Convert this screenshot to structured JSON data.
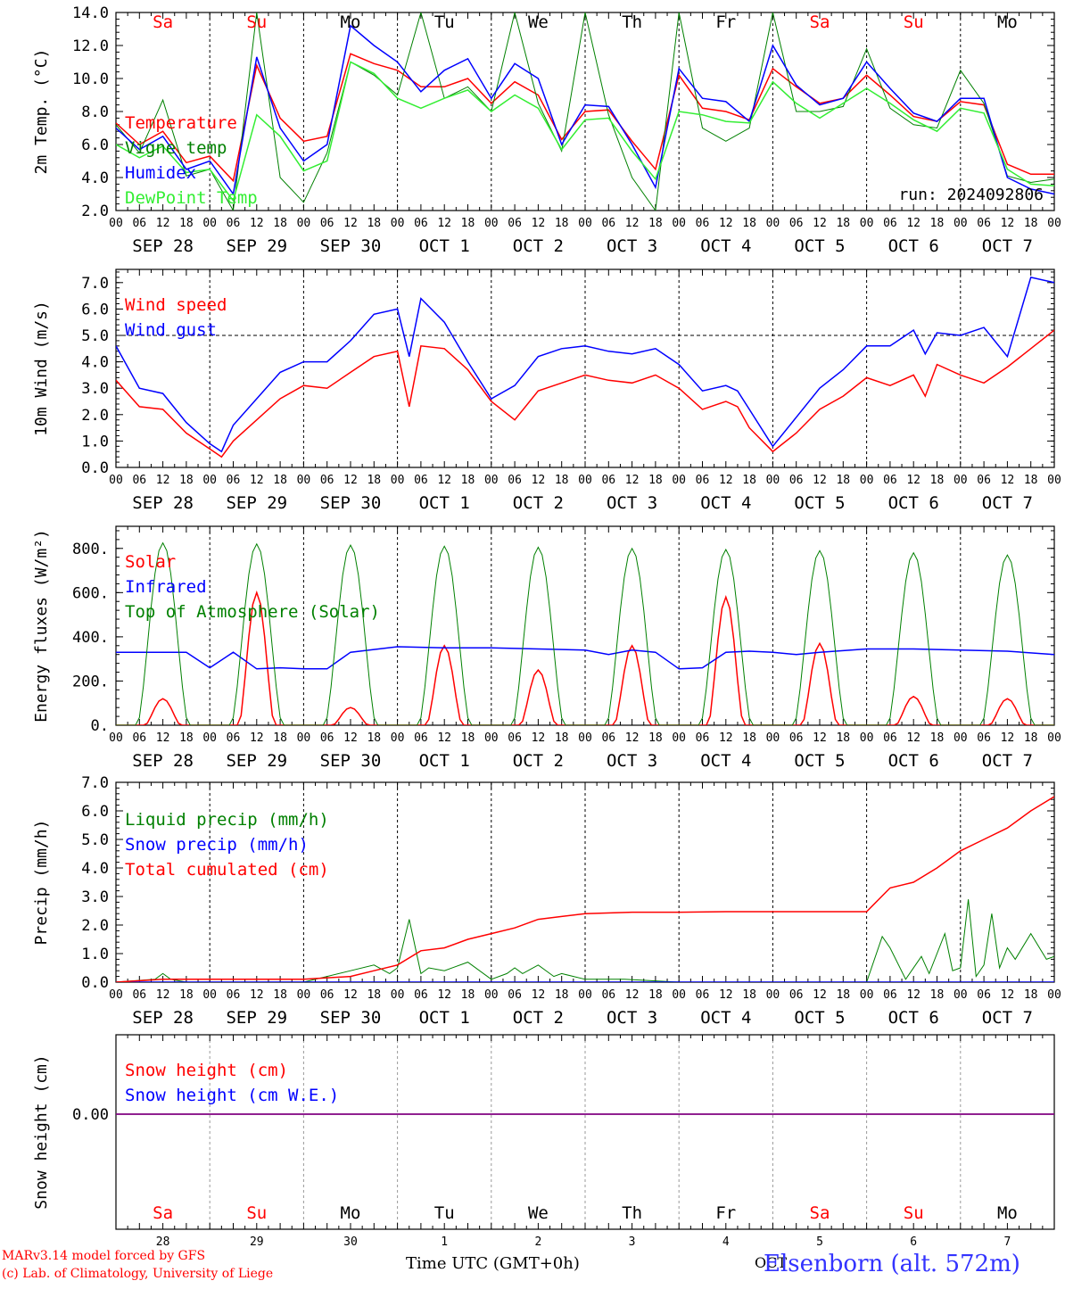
{
  "colors": {
    "red": "#ff0000",
    "blue": "#0000ff",
    "green": "#008000",
    "lightgreen": "#33ee33",
    "axis": "#000000",
    "grid": "#000000",
    "snowline": "#800080"
  },
  "day_top_labels": [
    {
      "text": "Sa",
      "color": "#ff0000"
    },
    {
      "text": "Su",
      "color": "#ff0000"
    },
    {
      "text": "Mo",
      "color": "#000000"
    },
    {
      "text": "Tu",
      "color": "#000000"
    },
    {
      "text": "We",
      "color": "#000000"
    },
    {
      "text": "Th",
      "color": "#000000"
    },
    {
      "text": "Fr",
      "color": "#000000"
    },
    {
      "text": "Sa",
      "color": "#ff0000"
    },
    {
      "text": "Su",
      "color": "#ff0000"
    },
    {
      "text": "Mo",
      "color": "#000000"
    }
  ],
  "date_labels": [
    "SEP 28",
    "SEP 29",
    "SEP 30",
    "OCT 1",
    "OCT 2",
    "OCT 3",
    "OCT 4",
    "OCT 5",
    "OCT 6",
    "OCT 7"
  ],
  "hour_ticks": [
    "00",
    "06",
    "12",
    "18"
  ],
  "hour_tick_end": "00",
  "day_numbers": [
    "28",
    "29",
    "30",
    "1",
    "2",
    "3",
    "4",
    "5",
    "6",
    "7"
  ],
  "footer": {
    "model": "MARv3.14 model forced by GFS",
    "lab": "(c) Lab. of Climatology, University of Liege",
    "time_axis": "Time UTC (GMT+0h)",
    "station": "Elsenborn (alt. 572m)",
    "station_overlap": "OCT"
  },
  "chart_data": [
    {
      "type": "line",
      "ylabel": "2m Temp. (°C)",
      "ylim": [
        2,
        14
      ],
      "yticks": [
        "2.0",
        "4.0",
        "6.0",
        "8.0",
        "10.0",
        "12.0",
        "14.0"
      ],
      "annotation": "run: 2024092806",
      "x_unit": "hours from 2024-09-28 00 UTC",
      "series": [
        {
          "name": "Temperature",
          "color": "#ff0000",
          "x": [
            0,
            6,
            12,
            18,
            24,
            30,
            36,
            42,
            48,
            54,
            60,
            66,
            72,
            78,
            84,
            90,
            96,
            102,
            108,
            114,
            120,
            126,
            132,
            138,
            144,
            150,
            156,
            162,
            168,
            174,
            180,
            186,
            192,
            198,
            204,
            210,
            216,
            222,
            228,
            234,
            240
          ],
          "y": [
            7.3,
            6.0,
            6.8,
            4.9,
            5.3,
            3.8,
            10.8,
            7.6,
            6.2,
            6.5,
            11.5,
            10.9,
            10.5,
            9.5,
            9.5,
            10.0,
            8.5,
            9.8,
            9.0,
            6.3,
            8.0,
            8.1,
            6.2,
            4.5,
            10.2,
            8.2,
            8.0,
            7.5,
            10.6,
            9.5,
            8.5,
            8.8,
            10.2,
            9.0,
            7.7,
            7.4,
            8.6,
            8.4,
            4.8,
            4.2,
            4.2
          ]
        },
        {
          "name": "Vigne temp",
          "color": "#008000",
          "x": [
            0,
            6,
            12,
            18,
            24,
            30,
            36,
            42,
            48,
            54,
            60,
            66,
            72,
            78,
            84,
            90,
            96,
            102,
            108,
            114,
            120,
            126,
            132,
            138,
            144,
            150,
            156,
            162,
            168,
            174,
            180,
            186,
            192,
            198,
            204,
            210,
            216,
            222,
            228,
            234,
            240
          ],
          "y": [
            7.2,
            5.5,
            8.7,
            4.1,
            4.5,
            2.0,
            14.0,
            4.0,
            2.5,
            5.5,
            11.0,
            10.2,
            9.0,
            14.0,
            8.8,
            9.5,
            8.0,
            14.0,
            8.5,
            5.6,
            14.0,
            7.8,
            4.0,
            2.0,
            14.0,
            7.0,
            6.2,
            7.0,
            14.0,
            8.0,
            8.0,
            8.3,
            11.8,
            8.2,
            7.2,
            7.0,
            10.5,
            8.5,
            4.1,
            3.7,
            3.9
          ]
        },
        {
          "name": "Humidex",
          "color": "#0000ff",
          "x": [
            0,
            6,
            12,
            18,
            24,
            30,
            36,
            42,
            48,
            54,
            60,
            66,
            72,
            78,
            84,
            90,
            96,
            102,
            108,
            114,
            120,
            126,
            132,
            138,
            144,
            150,
            156,
            162,
            168,
            174,
            180,
            186,
            192,
            198,
            204,
            210,
            216,
            222,
            228,
            234,
            240
          ],
          "y": [
            7.0,
            5.7,
            6.5,
            4.5,
            5.0,
            3.0,
            11.3,
            7.0,
            5.0,
            6.0,
            13.2,
            12.0,
            11.0,
            9.2,
            10.5,
            11.2,
            8.8,
            10.9,
            10.0,
            6.0,
            8.4,
            8.3,
            6.0,
            3.4,
            10.6,
            8.8,
            8.6,
            7.4,
            12.0,
            9.6,
            8.4,
            8.8,
            11.0,
            9.4,
            7.9,
            7.4,
            8.8,
            8.8,
            4.0,
            3.3,
            3.0
          ]
        },
        {
          "name": "DewPoint Temp",
          "color": "#33ee33",
          "x": [
            0,
            6,
            12,
            18,
            24,
            30,
            36,
            42,
            48,
            54,
            60,
            66,
            72,
            78,
            84,
            90,
            96,
            102,
            108,
            114,
            120,
            126,
            132,
            138,
            144,
            150,
            156,
            162,
            168,
            174,
            180,
            186,
            192,
            198,
            204,
            210,
            216,
            222,
            228,
            234,
            240
          ],
          "y": [
            6.0,
            5.2,
            5.9,
            4.3,
            4.5,
            2.6,
            7.8,
            6.5,
            4.4,
            5.0,
            11.0,
            10.3,
            8.8,
            8.2,
            8.8,
            9.3,
            8.0,
            9.0,
            8.2,
            5.7,
            7.5,
            7.6,
            5.6,
            3.9,
            8.0,
            7.8,
            7.4,
            7.3,
            9.8,
            8.5,
            7.6,
            8.5,
            9.4,
            8.5,
            7.5,
            6.8,
            8.2,
            7.9,
            4.5,
            3.6,
            3.5
          ]
        }
      ]
    },
    {
      "type": "line",
      "ylabel": "10m Wind (m/s)",
      "ylim": [
        0,
        7.5
      ],
      "yticks": [
        "0.0",
        "1.0",
        "2.0",
        "3.0",
        "4.0",
        "5.0",
        "6.0",
        "7.0"
      ],
      "reference_line": 5.0,
      "x_unit": "hours from 2024-09-28 00 UTC",
      "series": [
        {
          "name": "Wind speed",
          "color": "#ff0000",
          "x": [
            0,
            6,
            12,
            18,
            24,
            27,
            30,
            36,
            42,
            48,
            54,
            60,
            66,
            72,
            75,
            78,
            84,
            90,
            96,
            102,
            108,
            114,
            120,
            126,
            132,
            138,
            144,
            150,
            156,
            159,
            162,
            168,
            174,
            180,
            186,
            192,
            198,
            204,
            207,
            210,
            216,
            222,
            228,
            234,
            240
          ],
          "y": [
            3.3,
            2.3,
            2.2,
            1.3,
            0.7,
            0.4,
            1.0,
            1.8,
            2.6,
            3.1,
            3.0,
            3.6,
            4.2,
            4.4,
            2.3,
            4.6,
            4.5,
            3.7,
            2.5,
            1.8,
            2.9,
            3.2,
            3.5,
            3.3,
            3.2,
            3.5,
            3.0,
            2.2,
            2.5,
            2.3,
            1.5,
            0.6,
            1.3,
            2.2,
            2.7,
            3.4,
            3.1,
            3.5,
            2.7,
            3.9,
            3.5,
            3.2,
            3.8,
            4.5,
            5.2
          ]
        },
        {
          "name": "Wind gust",
          "color": "#0000ff",
          "x": [
            0,
            6,
            12,
            18,
            24,
            27,
            30,
            36,
            42,
            48,
            54,
            60,
            66,
            72,
            75,
            78,
            84,
            90,
            96,
            102,
            108,
            114,
            120,
            126,
            132,
            138,
            144,
            150,
            156,
            159,
            162,
            168,
            174,
            180,
            186,
            192,
            198,
            204,
            207,
            210,
            216,
            222,
            228,
            234,
            240
          ],
          "y": [
            4.6,
            3.0,
            2.8,
            1.7,
            0.9,
            0.6,
            1.6,
            2.6,
            3.6,
            4.0,
            4.0,
            4.8,
            5.8,
            6.0,
            4.2,
            6.4,
            5.5,
            4.0,
            2.6,
            3.1,
            4.2,
            4.5,
            4.6,
            4.4,
            4.3,
            4.5,
            3.9,
            2.9,
            3.1,
            2.9,
            2.2,
            0.8,
            1.9,
            3.0,
            3.7,
            4.6,
            4.6,
            5.2,
            4.3,
            5.1,
            5.0,
            5.3,
            4.2,
            7.2,
            7.0
          ]
        }
      ]
    },
    {
      "type": "line",
      "ylabel": "Energy fluxes (W/m²)",
      "ylim": [
        0,
        900
      ],
      "yticks": [
        "0.",
        "200.",
        "400.",
        "600.",
        "800."
      ],
      "x_unit": "hours from 2024-09-28 00 UTC",
      "series": [
        {
          "name": "Solar",
          "color": "#ff0000",
          "daily_peak_hour": 12,
          "daily_peaks": [
            120,
            600,
            80,
            360,
            250,
            360,
            580,
            370,
            130,
            120
          ]
        },
        {
          "name": "Infrared",
          "color": "#0000ff",
          "x": [
            0,
            12,
            18,
            24,
            30,
            36,
            42,
            48,
            54,
            60,
            72,
            84,
            96,
            108,
            120,
            126,
            132,
            138,
            144,
            150,
            156,
            162,
            168,
            174,
            180,
            192,
            204,
            216,
            228,
            240
          ],
          "y": [
            330,
            330,
            330,
            260,
            330,
            255,
            260,
            255,
            255,
            330,
            355,
            350,
            350,
            345,
            340,
            320,
            340,
            330,
            255,
            260,
            330,
            335,
            330,
            320,
            330,
            345,
            345,
            340,
            335,
            320
          ]
        },
        {
          "name": "Top of Atmosphere (Solar)",
          "color": "#008000",
          "daily_peak_hour": 12,
          "daily_peaks": [
            825,
            820,
            815,
            810,
            805,
            800,
            795,
            790,
            780,
            770
          ]
        }
      ]
    },
    {
      "type": "line",
      "ylabel": "Precip (mm/h)",
      "ylim": [
        0,
        7
      ],
      "yticks": [
        "0.0",
        "1.0",
        "2.0",
        "3.0",
        "4.0",
        "5.0",
        "6.0",
        "7.0"
      ],
      "x_unit": "hours from 2024-09-28 00 UTC",
      "series": [
        {
          "name": "Liquid precip (mm/h)",
          "color": "#008000",
          "x": [
            0,
            10,
            12,
            14,
            18,
            24,
            48,
            60,
            66,
            70,
            72,
            75,
            78,
            80,
            84,
            90,
            96,
            100,
            102,
            104,
            108,
            112,
            114,
            120,
            130,
            144,
            168,
            192,
            196,
            198,
            202,
            206,
            208,
            212,
            214,
            216,
            218,
            220,
            222,
            224,
            226,
            228,
            230,
            234,
            238,
            240
          ],
          "y": [
            0,
            0.1,
            0.3,
            0.1,
            0,
            0,
            0,
            0.4,
            0.6,
            0.3,
            0.5,
            2.2,
            0.3,
            0.5,
            0.4,
            0.7,
            0.1,
            0.3,
            0.5,
            0.3,
            0.6,
            0.2,
            0.3,
            0.1,
            0.1,
            0,
            0,
            0,
            1.6,
            1.2,
            0.1,
            0.9,
            0.3,
            1.7,
            0.4,
            0.5,
            2.9,
            0.2,
            0.6,
            2.4,
            0.5,
            1.2,
            0.8,
            1.7,
            0.8,
            0.9
          ]
        },
        {
          "name": "Snow precip (mm/h)",
          "color": "#0000ff",
          "x": [
            0,
            240
          ],
          "y": [
            0,
            0
          ]
        },
        {
          "name": "Total cumulated (cm)",
          "color": "#ff0000",
          "x": [
            0,
            12,
            24,
            48,
            60,
            66,
            72,
            78,
            84,
            90,
            96,
            102,
            108,
            114,
            120,
            132,
            144,
            156,
            168,
            180,
            192,
            198,
            204,
            210,
            216,
            222,
            228,
            234,
            240
          ],
          "y": [
            0,
            0.1,
            0.1,
            0.1,
            0.2,
            0.4,
            0.6,
            1.1,
            1.2,
            1.5,
            1.7,
            1.9,
            2.2,
            2.3,
            2.4,
            2.45,
            2.45,
            2.47,
            2.47,
            2.47,
            2.47,
            3.3,
            3.5,
            4.0,
            4.6,
            5.0,
            5.4,
            6.0,
            6.5
          ]
        }
      ]
    },
    {
      "type": "line",
      "ylabel": "Snow height (cm)",
      "yticks": [
        "0.00"
      ],
      "x_unit": "hours from 2024-09-28 00 UTC",
      "series": [
        {
          "name": "Snow height (cm)",
          "color": "#ff0000",
          "x": [
            0,
            240
          ],
          "y": [
            0,
            0
          ]
        },
        {
          "name": "Snow height (cm W.E.)",
          "color": "#0000ff",
          "x": [
            0,
            240
          ],
          "y": [
            0,
            0
          ]
        }
      ]
    }
  ]
}
